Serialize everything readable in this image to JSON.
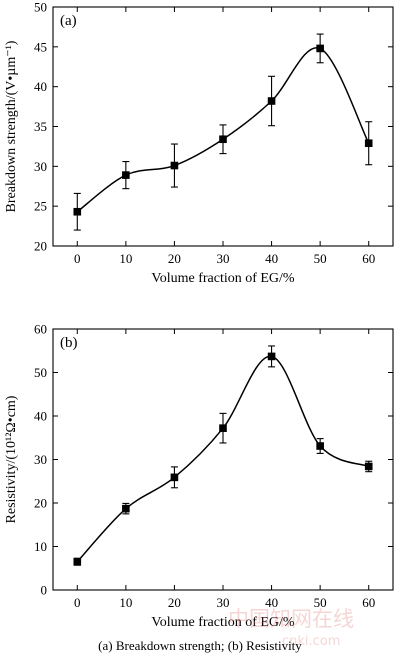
{
  "caption": "(a) Breakdown strength; (b) Resistivity",
  "watermark": {
    "main": "中国知网在线",
    "sub": "cnki.com"
  },
  "chart_data": [
    {
      "type": "line",
      "panel_label": "(a)",
      "xlabel": "Volume fraction of EG/%",
      "ylabel": "Breakdown strength/(V•µm⁻¹)",
      "xlim": [
        -5,
        65
      ],
      "ylim": [
        20,
        50
      ],
      "xticks": [
        0,
        10,
        20,
        30,
        40,
        50,
        60
      ],
      "yticks": [
        20,
        25,
        30,
        35,
        40,
        45,
        50
      ],
      "x": [
        0,
        10,
        20,
        30,
        40,
        50,
        60
      ],
      "values": [
        24.3,
        28.9,
        30.1,
        33.4,
        38.2,
        44.8,
        32.9
      ],
      "errors": [
        2.3,
        1.7,
        2.7,
        1.8,
        3.1,
        1.8,
        2.7
      ],
      "marker": "square",
      "color": "#000000"
    },
    {
      "type": "line",
      "panel_label": "(b)",
      "xlabel": "Volume fraction of EG/%",
      "ylabel": "Resistivity/(10¹²Ω•cm)",
      "xlim": [
        -5,
        65
      ],
      "ylim": [
        0,
        60
      ],
      "xticks": [
        0,
        10,
        20,
        30,
        40,
        50,
        60
      ],
      "yticks": [
        0,
        10,
        20,
        30,
        40,
        50,
        60
      ],
      "x": [
        0,
        10,
        20,
        30,
        40,
        50,
        60
      ],
      "values": [
        6.5,
        18.7,
        25.9,
        37.2,
        53.7,
        33.1,
        28.4
      ],
      "errors": [
        0.8,
        1.2,
        2.4,
        3.4,
        2.4,
        1.7,
        1.2
      ],
      "marker": "square",
      "color": "#000000"
    }
  ]
}
